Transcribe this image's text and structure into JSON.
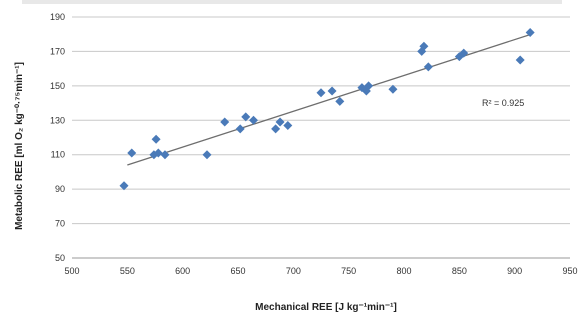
{
  "chart_data": {
    "type": "scatter",
    "title": "",
    "xlabel": "Mechanical REE [J kg⁻¹min⁻¹]",
    "ylabel": "Metabolic REE [ml O₂ kg⁻⁰·⁷⁵min⁻¹]",
    "xlim": [
      500,
      950
    ],
    "ylim": [
      50,
      190
    ],
    "xticks": [
      500,
      550,
      600,
      650,
      700,
      750,
      800,
      850,
      900,
      950
    ],
    "yticks": [
      50,
      70,
      90,
      110,
      130,
      150,
      170,
      190
    ],
    "grid": "horizontal",
    "marker_color": "#4a7ab8",
    "trendline_color": "#6e6e6e",
    "annotation": "R² = 0.925",
    "trendline": {
      "x": [
        550,
        915
      ],
      "y": [
        104,
        180
      ]
    },
    "points": [
      {
        "x": 547,
        "y": 92
      },
      {
        "x": 554,
        "y": 111
      },
      {
        "x": 574,
        "y": 110
      },
      {
        "x": 576,
        "y": 119
      },
      {
        "x": 578,
        "y": 111
      },
      {
        "x": 584,
        "y": 110
      },
      {
        "x": 622,
        "y": 110
      },
      {
        "x": 638,
        "y": 129
      },
      {
        "x": 652,
        "y": 125
      },
      {
        "x": 657,
        "y": 132
      },
      {
        "x": 664,
        "y": 130
      },
      {
        "x": 684,
        "y": 125
      },
      {
        "x": 688,
        "y": 129
      },
      {
        "x": 695,
        "y": 127
      },
      {
        "x": 725,
        "y": 146
      },
      {
        "x": 735,
        "y": 147
      },
      {
        "x": 742,
        "y": 141
      },
      {
        "x": 762,
        "y": 149
      },
      {
        "x": 766,
        "y": 147
      },
      {
        "x": 768,
        "y": 150
      },
      {
        "x": 790,
        "y": 148
      },
      {
        "x": 816,
        "y": 170
      },
      {
        "x": 818,
        "y": 173
      },
      {
        "x": 822,
        "y": 161
      },
      {
        "x": 850,
        "y": 167
      },
      {
        "x": 854,
        "y": 169
      },
      {
        "x": 905,
        "y": 165
      },
      {
        "x": 914,
        "y": 181
      }
    ]
  }
}
